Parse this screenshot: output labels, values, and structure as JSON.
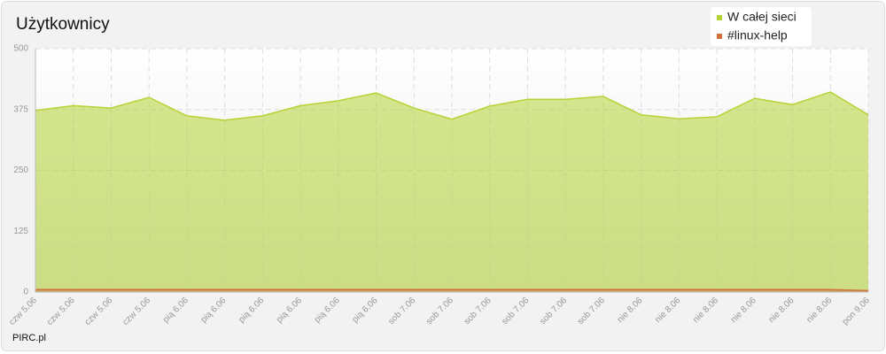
{
  "chart_data": {
    "type": "area",
    "title": "Użytkownicy",
    "footer": "PIRC.pl",
    "categories": [
      "czw 5.06",
      "czw 5.06",
      "czw 5.06",
      "czw 5.06",
      "pią 6.06",
      "pią 6.06",
      "pią 6.06",
      "pią 6.06",
      "pią 6.06",
      "pią 6.06",
      "sob 7.06",
      "sob 7.06",
      "sob 7.06",
      "sob 7.06",
      "sob 7.06",
      "sob 7.06",
      "nie 8.06",
      "nie 8.06",
      "nie 8.06",
      "nie 8.06",
      "nie 8.06",
      "nie 8.06",
      "pon 9.06"
    ],
    "series": [
      {
        "name": "W całej sieci",
        "color": "#b5d334",
        "values": [
          373,
          383,
          378,
          400,
          362,
          353,
          362,
          383,
          393,
          409,
          378,
          355,
          382,
          396,
          396,
          402,
          364,
          356,
          360,
          398,
          385,
          411,
          364
        ]
      },
      {
        "name": "#linux-help",
        "color": "#d0703a",
        "values": [
          5,
          5,
          5,
          5,
          5,
          5,
          5,
          5,
          5,
          5,
          5,
          5,
          5,
          5,
          5,
          5,
          5,
          5,
          5,
          5,
          5,
          5,
          3
        ]
      }
    ],
    "ylim": [
      0,
      500
    ],
    "yticks": [
      0,
      125,
      250,
      375,
      500
    ],
    "grid": true
  }
}
